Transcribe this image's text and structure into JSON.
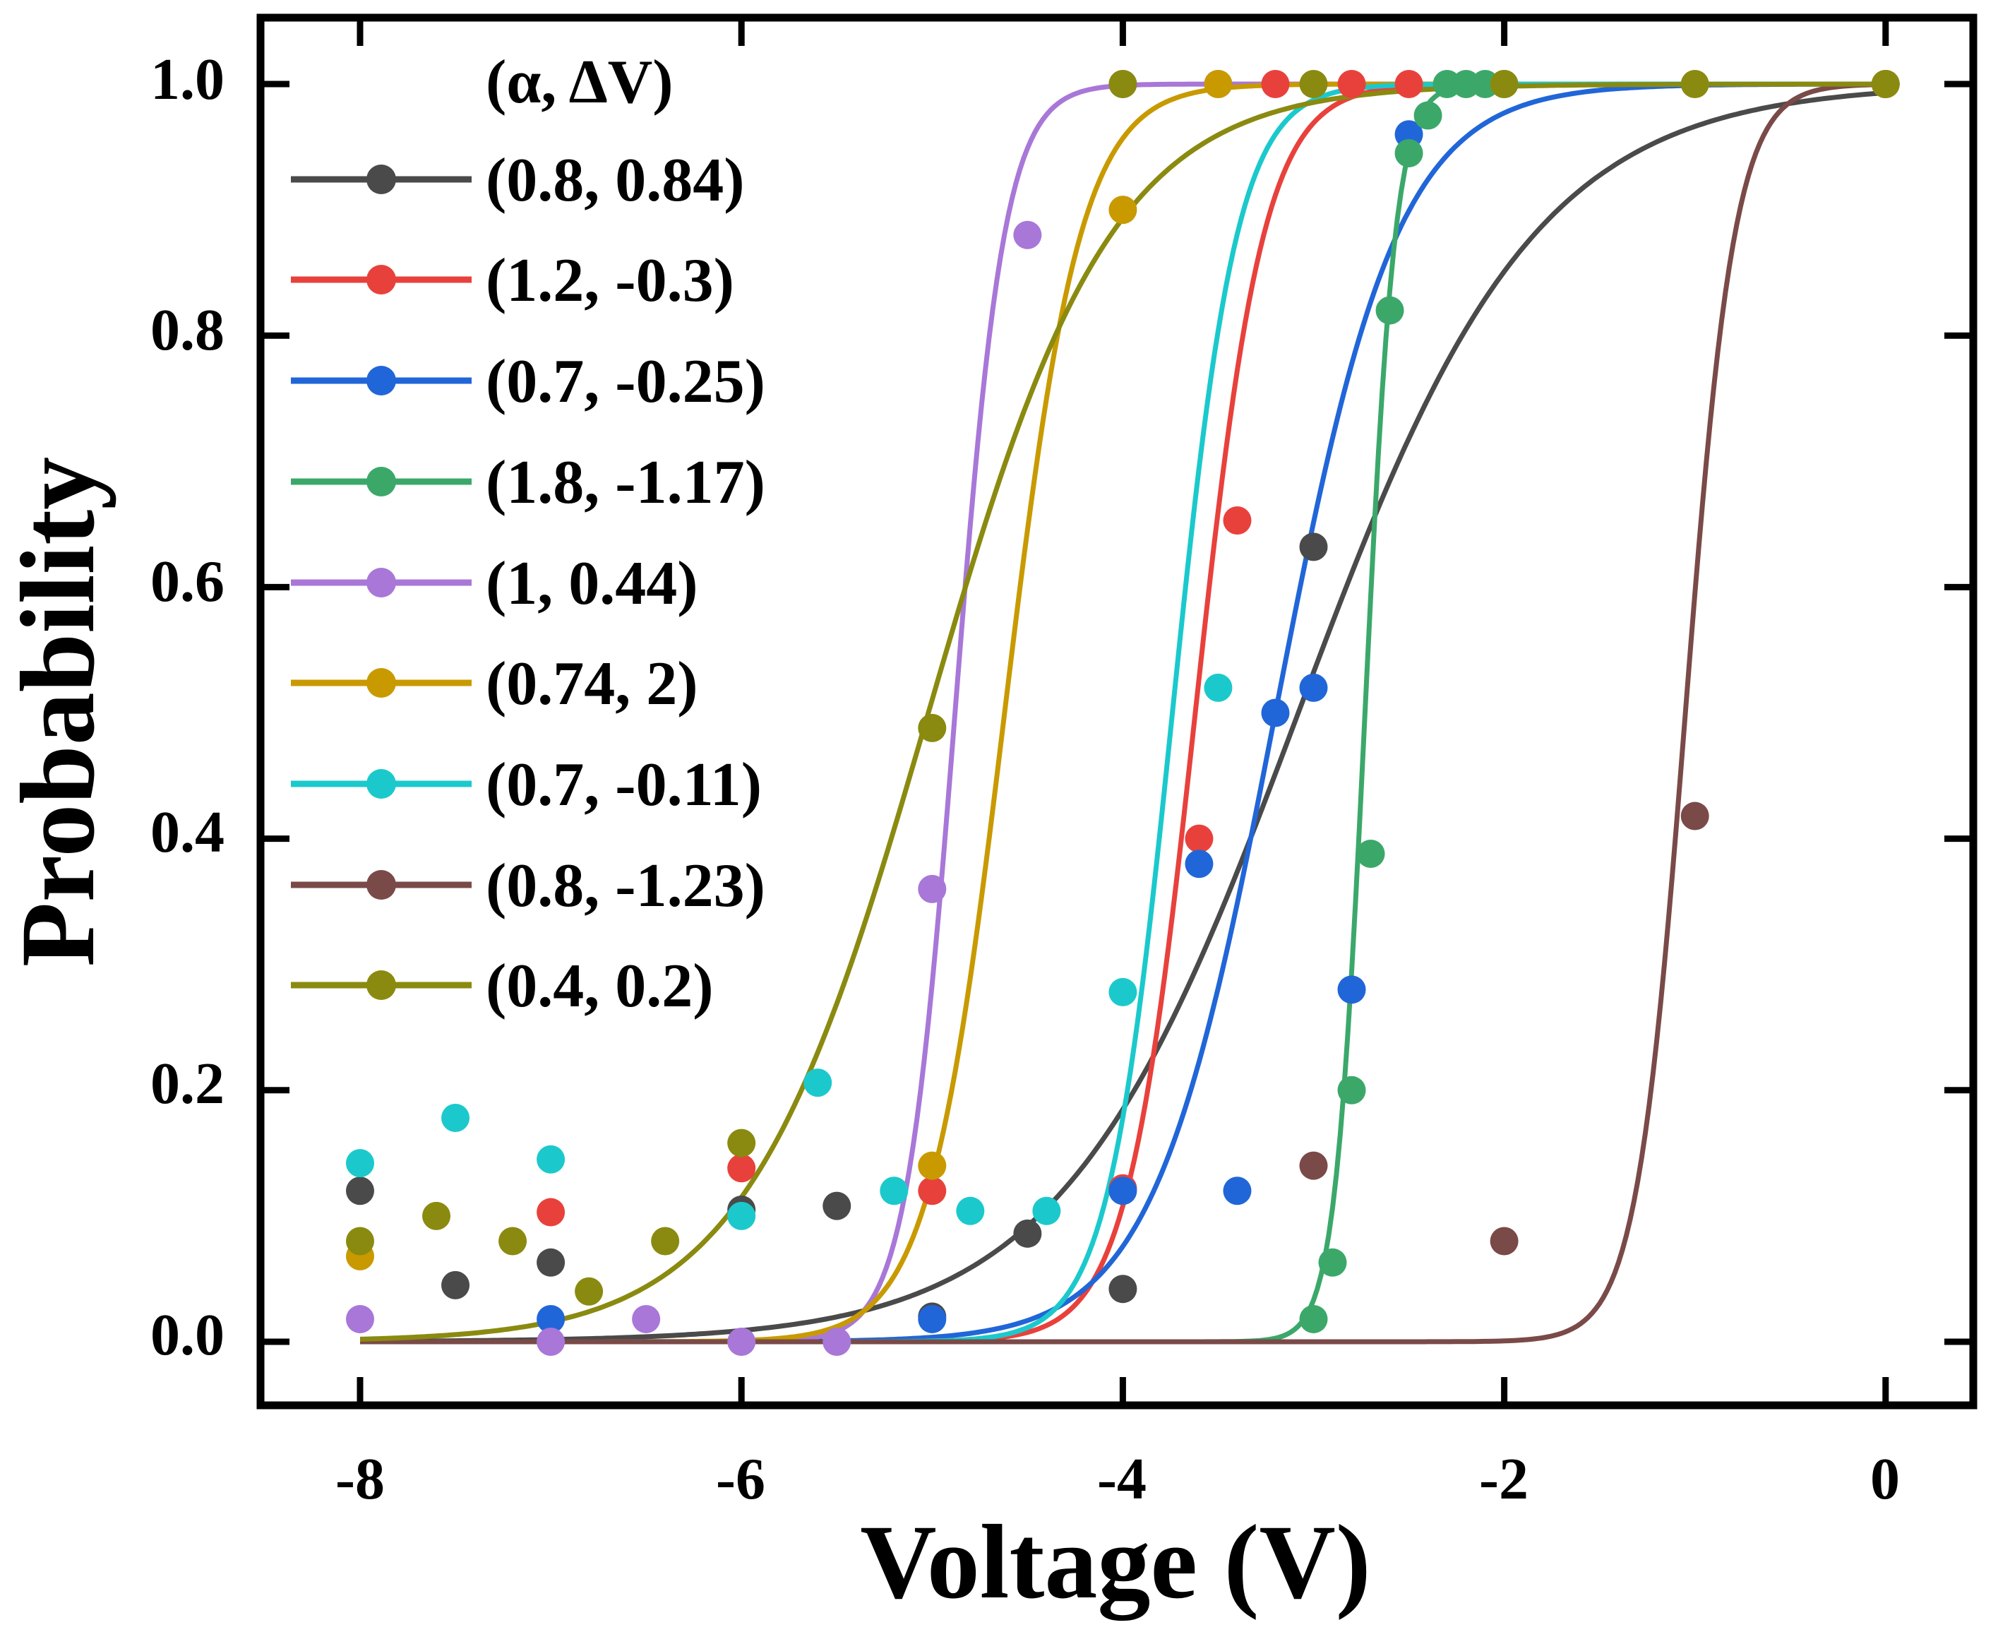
{
  "chart_data": {
    "type": "scatter",
    "xlabel": "Voltage (V)",
    "ylabel": "Probability",
    "xlim": [
      -8.5,
      0.5
    ],
    "ylim": [
      -0.05,
      1.05
    ],
    "xticks": [
      -8,
      -6,
      -4,
      -2,
      0
    ],
    "xtick_labels": [
      "-8",
      "-6",
      "-4",
      "-2",
      "0"
    ],
    "yticks": [
      0.0,
      0.2,
      0.4,
      0.6,
      0.8,
      1.0
    ],
    "ytick_labels": [
      "0.0",
      "0.2",
      "0.4",
      "0.6",
      "0.8",
      "1.0"
    ],
    "legend_title": "(α, ΔV)",
    "legend_position": "top-left",
    "series": [
      {
        "name": "(0.8, 0.84)",
        "color": "#4a4a4a",
        "curve": {
          "center": -3.08,
          "scale": 0.62
        },
        "points": [
          [
            -8,
            0.12
          ],
          [
            -7.5,
            0.045
          ],
          [
            -7,
            0.063
          ],
          [
            -6,
            0.105
          ],
          [
            -5.5,
            0.108
          ],
          [
            -5,
            0.02
          ],
          [
            -4.5,
            0.086
          ],
          [
            -4,
            0.042
          ],
          [
            -3,
            0.632
          ],
          [
            0,
            1.0
          ]
        ]
      },
      {
        "name": "(1.2, -0.3)",
        "color": "#e8413c",
        "curve": {
          "center": -3.62,
          "scale": 0.18
        },
        "points": [
          [
            -7,
            0.103
          ],
          [
            -6,
            0.138
          ],
          [
            -5,
            0.12
          ],
          [
            -4,
            0.122
          ],
          [
            -3.6,
            0.4
          ],
          [
            -3.4,
            0.653
          ],
          [
            -3.2,
            1.0
          ],
          [
            -2.8,
            1.0
          ],
          [
            -2.5,
            1.0
          ]
        ]
      },
      {
        "name": "(0.7, -0.25)",
        "color": "#2166d8",
        "curve": {
          "center": -3.2,
          "scale": 0.32
        },
        "points": [
          [
            -7,
            0.018
          ],
          [
            -5,
            0.018
          ],
          [
            -4,
            0.12
          ],
          [
            -3.6,
            0.38
          ],
          [
            -3.4,
            0.12
          ],
          [
            -3.2,
            0.5
          ],
          [
            -3,
            0.52
          ],
          [
            -2.8,
            0.28
          ],
          [
            -2.5,
            0.96
          ]
        ]
      },
      {
        "name": "(1.8, -1.17)",
        "color": "#3ba86a",
        "curve": {
          "center": -2.73,
          "scale": 0.08
        },
        "points": [
          [
            -3,
            0.018
          ],
          [
            -2.9,
            0.063
          ],
          [
            -2.8,
            0.2
          ],
          [
            -2.7,
            0.388
          ],
          [
            -2.6,
            0.82
          ],
          [
            -2.5,
            0.945
          ],
          [
            -2.4,
            0.975
          ],
          [
            -2.3,
            1.0
          ],
          [
            -2.2,
            1.0
          ],
          [
            -2.1,
            1.0
          ],
          [
            -2,
            1.0
          ]
        ]
      },
      {
        "name": "(1, 0.44)",
        "color": "#a877d8",
        "curve": {
          "center": -4.88,
          "scale": 0.13
        },
        "points": [
          [
            -8,
            0.018
          ],
          [
            -7,
            0.0
          ],
          [
            -6.5,
            0.018
          ],
          [
            -6,
            0.0
          ],
          [
            -5.5,
            0.0
          ],
          [
            -5,
            0.36
          ],
          [
            -4.5,
            0.88
          ],
          [
            -4,
            1.0
          ],
          [
            -3.5,
            1.0
          ]
        ]
      },
      {
        "name": "(0.74, 2)",
        "color": "#c89a00",
        "curve": {
          "center": -4.62,
          "scale": 0.2
        },
        "points": [
          [
            -8,
            0.068
          ],
          [
            -5,
            0.14
          ],
          [
            -4,
            0.9
          ],
          [
            -3.5,
            1.0
          ],
          [
            0,
            1.0
          ]
        ]
      },
      {
        "name": "(0.7, -0.11)",
        "color": "#1bc9cc",
        "curve": {
          "center": -3.74,
          "scale": 0.17
        },
        "points": [
          [
            -8,
            0.142
          ],
          [
            -7.5,
            0.178
          ],
          [
            -7,
            0.145
          ],
          [
            -6,
            0.1
          ],
          [
            -5.6,
            0.206
          ],
          [
            -5.2,
            0.12
          ],
          [
            -4.8,
            0.104
          ],
          [
            -4.4,
            0.104
          ],
          [
            -4,
            0.278
          ],
          [
            -3.5,
            0.52
          ]
        ]
      },
      {
        "name": "(0.8, -1.23)",
        "color": "#7a4a48",
        "curve": {
          "center": -1.05,
          "scale": 0.13
        },
        "points": [
          [
            -3,
            0.14
          ],
          [
            -2,
            0.08
          ],
          [
            -1,
            0.418
          ]
        ]
      },
      {
        "name": "(0.4, 0.2)",
        "color": "#8a8a10",
        "curve": {
          "center": -5.02,
          "scale": 0.48
        },
        "points": [
          [
            -8,
            0.08
          ],
          [
            -7.6,
            0.1
          ],
          [
            -7.2,
            0.08
          ],
          [
            -6.8,
            0.04
          ],
          [
            -6.4,
            0.08
          ],
          [
            -6,
            0.158
          ],
          [
            -5,
            0.488
          ],
          [
            -4,
            1.0
          ],
          [
            -3,
            1.0
          ],
          [
            -2,
            1.0
          ],
          [
            -1,
            1.0
          ],
          [
            0,
            1.0
          ]
        ]
      }
    ]
  }
}
